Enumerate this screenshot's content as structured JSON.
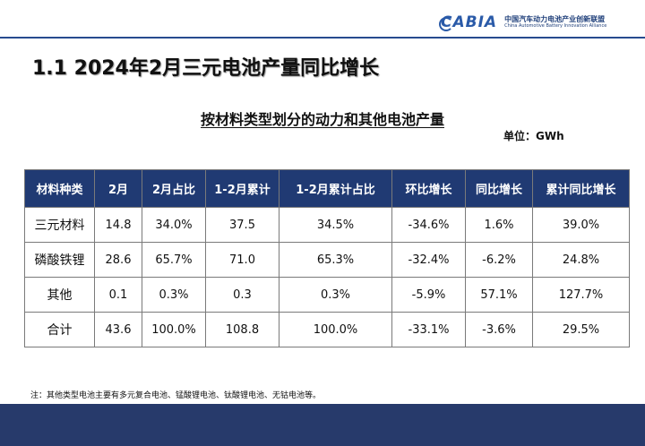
{
  "header": {
    "logo_mark": "CABIA",
    "org_name_cn": "中国汽车动力电池产业创新联盟",
    "org_name_en": "China Automotive Battery Innovation Alliance"
  },
  "slide": {
    "title": "1.1 2024年2月三元电池产量同比增长",
    "subtitle": "按材料类型划分的动力和其他电池产量",
    "unit": "单位：GWh",
    "note": "注：其他类型电池主要有多元复合电池、锰酸锂电池、钛酸锂电池、无钴电池等。"
  },
  "table": {
    "headers": [
      "材料种类",
      "2月",
      "2月占比",
      "1-2月累计",
      "1-2月累计占比",
      "环比增长",
      "同比增长",
      "累计同比增长"
    ],
    "rows": [
      [
        "三元材料",
        "14.8",
        "34.0%",
        "37.5",
        "34.5%",
        "-34.6%",
        "1.6%",
        "39.0%"
      ],
      [
        "磷酸铁锂",
        "28.6",
        "65.7%",
        "71.0",
        "65.3%",
        "-32.4%",
        "-6.2%",
        "24.8%"
      ],
      [
        "其他",
        "0.1",
        "0.3%",
        "0.3",
        "0.3%",
        "-5.9%",
        "57.1%",
        "127.7%"
      ],
      [
        "合计",
        "43.6",
        "100.0%",
        "108.8",
        "100.0%",
        "-33.1%",
        "-3.6%",
        "29.5%"
      ]
    ]
  },
  "colors": {
    "header_bg": "#203a73",
    "header_text": "#ffffff",
    "footer_band": "#273a6b",
    "brand_blue": "#2a5aa8"
  }
}
